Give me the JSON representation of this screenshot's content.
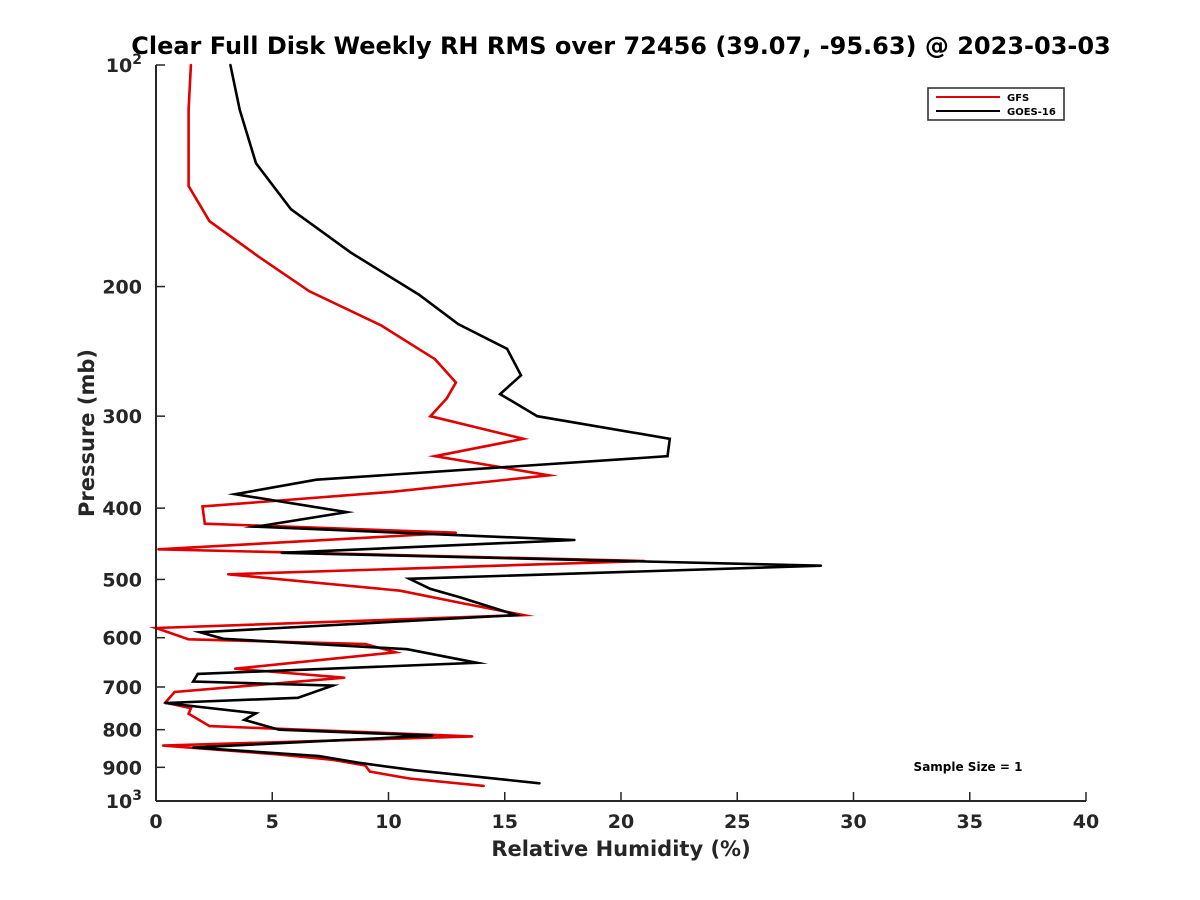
{
  "chart_data": {
    "type": "line",
    "title": "Clear Full Disk Weekly RH RMS over 72456 (39.07, -95.63) @ 2023-03-03",
    "xlabel": "Relative Humidity (%)",
    "ylabel": "Pressure (mb)",
    "xlim": [
      0,
      40
    ],
    "ylim": [
      100,
      1000
    ],
    "y_scale": "log",
    "y_reversed": false,
    "grid": false,
    "legend_position": "top-right",
    "x_ticks": [
      0,
      5,
      10,
      15,
      20,
      25,
      30,
      35,
      40
    ],
    "x_tick_labels": [
      "0",
      "5",
      "10",
      "15",
      "20",
      "25",
      "30",
      "35",
      "40"
    ],
    "y_ticks": [
      100,
      200,
      300,
      400,
      500,
      600,
      700,
      800,
      900,
      1000
    ],
    "y_tick_labels": [
      {
        "base": "10",
        "exp": "2"
      },
      {
        "base": "200",
        "exp": ""
      },
      {
        "base": "300",
        "exp": ""
      },
      {
        "base": "400",
        "exp": ""
      },
      {
        "base": "500",
        "exp": ""
      },
      {
        "base": "600",
        "exp": ""
      },
      {
        "base": "700",
        "exp": ""
      },
      {
        "base": "800",
        "exp": ""
      },
      {
        "base": "900",
        "exp": ""
      },
      {
        "base": "10",
        "exp": "3"
      }
    ],
    "annotation": "Sample Size = 1",
    "series": [
      {
        "name": "GFS",
        "color": "#e00000",
        "points": [
          [
            1.5,
            100
          ],
          [
            1.4,
            115
          ],
          [
            1.4,
            130
          ],
          [
            1.4,
            146
          ],
          [
            2.3,
            163
          ],
          [
            4.4,
            182
          ],
          [
            6.6,
            203
          ],
          [
            9.7,
            226
          ],
          [
            12.0,
            251
          ],
          [
            12.9,
            270
          ],
          [
            12.5,
            284
          ],
          [
            11.8,
            300
          ],
          [
            15.8,
            322
          ],
          [
            12.0,
            340
          ],
          [
            16.9,
            361
          ],
          [
            10.2,
            380
          ],
          [
            2.0,
            398
          ],
          [
            2.1,
            420
          ],
          [
            12.9,
            432
          ],
          [
            0.1,
            455
          ],
          [
            21.0,
            472
          ],
          [
            3.1,
            492
          ],
          [
            10.5,
            518
          ],
          [
            13.1,
            538
          ],
          [
            15.8,
            559
          ],
          [
            0.0,
            582
          ],
          [
            1.4,
            603
          ],
          [
            9.0,
            612
          ],
          [
            10.3,
            628
          ],
          [
            3.4,
            661
          ],
          [
            8.1,
            680
          ],
          [
            0.8,
            711
          ],
          [
            0.4,
            735
          ],
          [
            1.5,
            748
          ],
          [
            1.4,
            761
          ],
          [
            2.3,
            791
          ],
          [
            13.6,
            817
          ],
          [
            0.3,
            841
          ],
          [
            5.2,
            864
          ],
          [
            7.6,
            879
          ],
          [
            9.0,
            895
          ],
          [
            9.2,
            912
          ],
          [
            10.9,
            932
          ],
          [
            14.1,
            954
          ]
        ]
      },
      {
        "name": "GOES-16",
        "color": "#000000",
        "points": [
          [
            3.2,
            100
          ],
          [
            3.6,
            115
          ],
          [
            4.3,
            136
          ],
          [
            5.8,
            157
          ],
          [
            8.4,
            180
          ],
          [
            11.3,
            205
          ],
          [
            13.0,
            225
          ],
          [
            15.1,
            243
          ],
          [
            15.7,
            264
          ],
          [
            14.8,
            280
          ],
          [
            16.4,
            300
          ],
          [
            22.1,
            322
          ],
          [
            22.0,
            340
          ],
          [
            6.9,
            366
          ],
          [
            3.4,
            383
          ],
          [
            8.2,
            405
          ],
          [
            4.3,
            424
          ],
          [
            18.0,
            442
          ],
          [
            5.4,
            460
          ],
          [
            28.6,
            479
          ],
          [
            10.9,
            499
          ],
          [
            11.8,
            515
          ],
          [
            13.1,
            529
          ],
          [
            15.5,
            559
          ],
          [
            1.9,
            590
          ],
          [
            2.9,
            602
          ],
          [
            10.8,
            622
          ],
          [
            13.8,
            649
          ],
          [
            1.8,
            672
          ],
          [
            1.6,
            688
          ],
          [
            7.6,
            697
          ],
          [
            6.1,
            724
          ],
          [
            0.4,
            736
          ],
          [
            4.3,
            760
          ],
          [
            3.8,
            776
          ],
          [
            5.3,
            800
          ],
          [
            11.9,
            815
          ],
          [
            1.6,
            846
          ],
          [
            7.0,
            869
          ],
          [
            8.7,
            887
          ],
          [
            11.1,
            908
          ],
          [
            16.5,
            946
          ]
        ]
      }
    ]
  }
}
